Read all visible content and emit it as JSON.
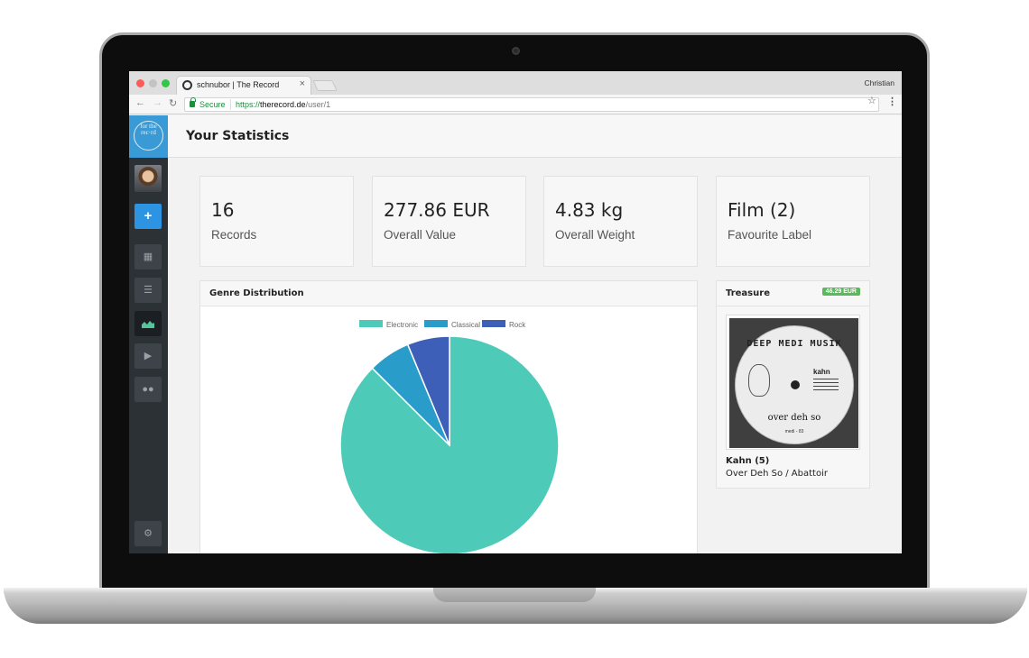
{
  "browser": {
    "tab_title": "schnubor | The Record",
    "tab_close": "×",
    "profile_name": "Christian",
    "secure_label": "Secure",
    "url_scheme": "https://",
    "url_host": "therecord.de",
    "url_path": "/user/1"
  },
  "sidebar": {
    "logo_text": "for the rec·rd",
    "add_label": "+",
    "items": [
      {
        "name": "dashboard",
        "icon": "grid-icon",
        "active": false
      },
      {
        "name": "collection",
        "icon": "stack-icon",
        "active": false
      },
      {
        "name": "statistics",
        "icon": "chart-icon",
        "active": true
      },
      {
        "name": "player",
        "icon": "play-icon",
        "active": false
      },
      {
        "name": "community",
        "icon": "users-icon",
        "active": false
      }
    ],
    "settings_icon": "gear-icon"
  },
  "header": {
    "title": "Your Statistics"
  },
  "stats": [
    {
      "value": "16",
      "label": "Records"
    },
    {
      "value": "277.86 EUR",
      "label": "Overall Value"
    },
    {
      "value": "4.83 kg",
      "label": "Overall Weight"
    },
    {
      "value": "Film (2)",
      "label": "Favourite Label"
    }
  ],
  "genre_panel": {
    "title": "Genre Distribution"
  },
  "chart_data": {
    "type": "pie",
    "title": "",
    "categories": [
      "Electronic",
      "Classical",
      "Rock"
    ],
    "values": [
      14,
      1,
      1
    ],
    "colors": [
      "#4ecbb8",
      "#2a9cc9",
      "#3e5fb8"
    ],
    "legend": "top"
  },
  "treasure": {
    "title": "Treasure",
    "badge": "46.29 EUR",
    "artist": "Kahn (5)",
    "record_title": "Over Deh So / Abattoir",
    "cover": {
      "brand": "DEEP MEDI MUSIK",
      "artist": "kahn",
      "title": "over deh so",
      "catalog": "medi - 83"
    }
  }
}
